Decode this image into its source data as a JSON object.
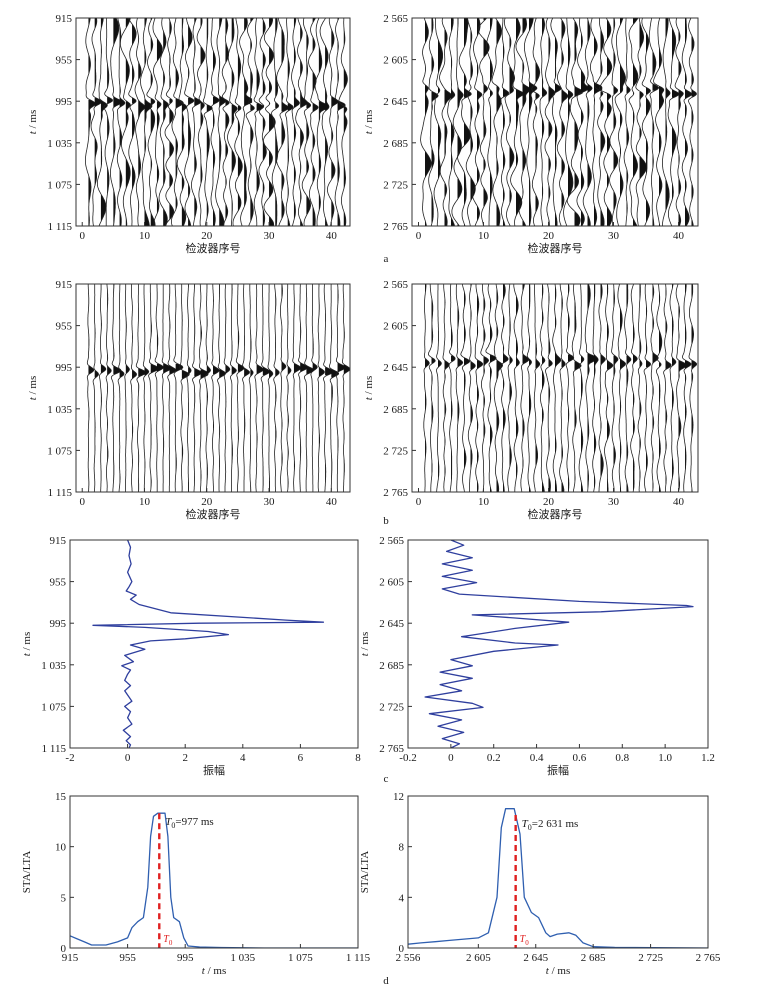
{
  "chart_data": [
    {
      "id": "a-left",
      "panel_label": "",
      "type": "seismic_wiggle",
      "ylabel_italic": "t",
      "ylabel_unit": " / ms",
      "xlabel": "检波器序号",
      "yticks": [
        "915",
        "955",
        "995",
        "1 035",
        "1 075",
        "1 115"
      ],
      "yrange": [
        915,
        1115
      ],
      "xticks": [
        "0",
        "10",
        "20",
        "30",
        "40"
      ],
      "xrange": [
        -1,
        43
      ],
      "traces": 42,
      "event_t": 998,
      "noise": 0.95,
      "event_amp": 1.2,
      "seed": 11
    },
    {
      "id": "a-right",
      "panel_label": "a",
      "type": "seismic_wiggle",
      "ylabel_italic": "t",
      "ylabel_unit": " / ms",
      "xlabel": "检波器序号",
      "yticks": [
        "2 565",
        "2 605",
        "2 645",
        "2 685",
        "2 725",
        "2 765"
      ],
      "yrange": [
        2565,
        2765
      ],
      "xticks": [
        "0",
        "10",
        "20",
        "30",
        "40"
      ],
      "xrange": [
        -1,
        43
      ],
      "traces": 42,
      "event_t": 2636,
      "noise": 1.0,
      "event_amp": 1.1,
      "seed": 23
    },
    {
      "id": "b-left",
      "panel_label": "",
      "type": "seismic_wiggle",
      "ylabel_italic": "t",
      "ylabel_unit": " / ms",
      "xlabel": "检波器序号",
      "yticks": [
        "915",
        "955",
        "995",
        "1 035",
        "1 075",
        "1 115"
      ],
      "yrange": [
        915,
        1115
      ],
      "xticks": [
        "0",
        "10",
        "20",
        "30",
        "40"
      ],
      "xrange": [
        -1,
        43
      ],
      "traces": 42,
      "event_t": 998,
      "noise": 0.18,
      "event_amp": 1.3,
      "seed": 37
    },
    {
      "id": "b-right",
      "panel_label": "b",
      "type": "seismic_wiggle",
      "ylabel_italic": "t",
      "ylabel_unit": " / ms",
      "xlabel": "检波器序号",
      "yticks": [
        "2 565",
        "2 605",
        "2 645",
        "2 685",
        "2 725",
        "2 765"
      ],
      "yrange": [
        2565,
        2765
      ],
      "xticks": [
        "0",
        "10",
        "20",
        "30",
        "40"
      ],
      "xrange": [
        -1,
        43
      ],
      "traces": 42,
      "event_t": 2640,
      "noise": 0.45,
      "event_amp": 1.2,
      "seed": 53
    },
    {
      "id": "c-left",
      "panel_label": "",
      "type": "line",
      "ylabel_italic": "t",
      "ylabel_unit": " / ms",
      "xlabel": "振幅",
      "yticks": [
        "915",
        "955",
        "995",
        "1 035",
        "1 075",
        "1 115"
      ],
      "yrange": [
        915,
        1115
      ],
      "xticks": [
        "-2",
        "0",
        "2",
        "4",
        "6",
        "8"
      ],
      "xrange": [
        -2,
        8
      ],
      "series_color": "#2f3f9e",
      "points": [
        [
          0.0,
          915
        ],
        [
          0.1,
          922
        ],
        [
          0.05,
          930
        ],
        [
          0.12,
          938
        ],
        [
          0.0,
          946
        ],
        [
          0.15,
          955
        ],
        [
          0.05,
          960
        ],
        [
          -0.05,
          964
        ],
        [
          0.3,
          968
        ],
        [
          0.1,
          972
        ],
        [
          0.4,
          977
        ],
        [
          1.5,
          985
        ],
        [
          5.5,
          992
        ],
        [
          6.8,
          994
        ],
        [
          2.5,
          995
        ],
        [
          -1.2,
          997
        ],
        [
          -0.3,
          998
        ],
        [
          0.6,
          999
        ],
        [
          2.8,
          1003
        ],
        [
          3.5,
          1006
        ],
        [
          2.0,
          1010
        ],
        [
          0.8,
          1012
        ],
        [
          0.1,
          1016
        ],
        [
          0.6,
          1020
        ],
        [
          -0.1,
          1026
        ],
        [
          0.2,
          1032
        ],
        [
          -0.2,
          1036
        ],
        [
          0.1,
          1040
        ],
        [
          0.0,
          1044
        ],
        [
          -0.1,
          1050
        ],
        [
          0.1,
          1055
        ],
        [
          -0.1,
          1060
        ],
        [
          0.05,
          1066
        ],
        [
          0.15,
          1070
        ],
        [
          -0.1,
          1075
        ],
        [
          0.1,
          1080
        ],
        [
          0.0,
          1086
        ],
        [
          0.15,
          1092
        ],
        [
          -0.15,
          1098
        ],
        [
          0.1,
          1104
        ],
        [
          -0.05,
          1108
        ],
        [
          0.1,
          1112
        ],
        [
          0.05,
          1115
        ]
      ]
    },
    {
      "id": "c-right",
      "panel_label": "c",
      "type": "line",
      "ylabel_italic": "t",
      "ylabel_unit": " / ms",
      "xlabel": "振幅",
      "yticks": [
        "2 565",
        "2 605",
        "2 645",
        "2 685",
        "2 725",
        "2 765"
      ],
      "yrange": [
        2565,
        2765
      ],
      "xticks": [
        "-0.2",
        "0",
        "0.2",
        "0.4",
        "0.6",
        "0.8",
        "1.0",
        "1.2"
      ],
      "xrange": [
        -0.2,
        1.2
      ],
      "series_color": "#2f3f9e",
      "points": [
        [
          0.0,
          2565
        ],
        [
          0.06,
          2570
        ],
        [
          -0.02,
          2576
        ],
        [
          0.1,
          2582
        ],
        [
          -0.04,
          2588
        ],
        [
          0.1,
          2594
        ],
        [
          -0.04,
          2600
        ],
        [
          0.12,
          2606
        ],
        [
          -0.04,
          2612
        ],
        [
          0.04,
          2617
        ],
        [
          0.6,
          2624
        ],
        [
          1.1,
          2628
        ],
        [
          1.13,
          2629
        ],
        [
          0.7,
          2634
        ],
        [
          0.1,
          2637
        ],
        [
          0.3,
          2640
        ],
        [
          0.55,
          2644
        ],
        [
          0.3,
          2650
        ],
        [
          0.05,
          2658
        ],
        [
          0.3,
          2664
        ],
        [
          0.5,
          2666
        ],
        [
          0.2,
          2672
        ],
        [
          0.0,
          2680
        ],
        [
          0.1,
          2686
        ],
        [
          -0.05,
          2692
        ],
        [
          0.1,
          2698
        ],
        [
          -0.05,
          2704
        ],
        [
          0.05,
          2710
        ],
        [
          -0.12,
          2716
        ],
        [
          0.1,
          2722
        ],
        [
          0.15,
          2726
        ],
        [
          -0.1,
          2732
        ],
        [
          0.05,
          2738
        ],
        [
          -0.06,
          2744
        ],
        [
          0.06,
          2750
        ],
        [
          -0.04,
          2756
        ],
        [
          0.04,
          2761
        ],
        [
          0.0,
          2765
        ]
      ]
    },
    {
      "id": "d-left",
      "panel_label": "",
      "type": "line",
      "ylabel": "STA/LTA",
      "xlabel_italic": "t",
      "xlabel_unit": " / ms",
      "yticks": [
        "0",
        "5",
        "10",
        "15"
      ],
      "yrange": [
        0,
        15
      ],
      "xticks": [
        "915",
        "955",
        "995",
        "1 035",
        "1 075",
        "1 115"
      ],
      "xrange": [
        915,
        1115
      ],
      "series_color": "#2f5fb0",
      "points": [
        [
          915,
          1.2
        ],
        [
          920,
          0.9
        ],
        [
          925,
          0.6
        ],
        [
          930,
          0.3
        ],
        [
          940,
          0.3
        ],
        [
          948,
          0.6
        ],
        [
          955,
          1.0
        ],
        [
          958,
          2.0
        ],
        [
          962,
          2.6
        ],
        [
          966,
          3.0
        ],
        [
          969,
          6.0
        ],
        [
          971,
          11.0
        ],
        [
          973,
          13.0
        ],
        [
          976,
          13.3
        ],
        [
          981,
          13.3
        ],
        [
          983,
          11.0
        ],
        [
          985,
          5.0
        ],
        [
          987,
          3.0
        ],
        [
          991,
          2.6
        ],
        [
          994,
          1.0
        ],
        [
          997,
          0.2
        ],
        [
          1005,
          0.1
        ],
        [
          1020,
          0.05
        ],
        [
          1050,
          0.0
        ],
        [
          1115,
          0.0
        ]
      ],
      "marker": {
        "x": 977,
        "label_italic": "T",
        "label_sub": "0",
        "label_value": "=977 ms",
        "color": "#e02020"
      }
    },
    {
      "id": "d-right",
      "panel_label": "d",
      "type": "line",
      "ylabel": "STA/LTA",
      "xlabel_italic": "t",
      "xlabel_unit": " / ms",
      "yticks": [
        "0",
        "4",
        "8",
        "12"
      ],
      "yrange": [
        0,
        12
      ],
      "xticks": [
        "2 556",
        "2 605",
        "2 645",
        "2 685",
        "2 725",
        "2 765"
      ],
      "xrange": [
        2556,
        2765
      ],
      "series_color": "#2f5fb0",
      "points": [
        [
          2556,
          0.3
        ],
        [
          2565,
          0.4
        ],
        [
          2575,
          0.5
        ],
        [
          2585,
          0.6
        ],
        [
          2595,
          0.7
        ],
        [
          2605,
          0.8
        ],
        [
          2612,
          1.2
        ],
        [
          2618,
          4.0
        ],
        [
          2621,
          9.5
        ],
        [
          2624,
          11.0
        ],
        [
          2630,
          11.0
        ],
        [
          2634,
          9.0
        ],
        [
          2637,
          4.0
        ],
        [
          2642,
          2.8
        ],
        [
          2647,
          2.4
        ],
        [
          2652,
          1.2
        ],
        [
          2655,
          0.9
        ],
        [
          2660,
          1.1
        ],
        [
          2668,
          1.2
        ],
        [
          2673,
          1.0
        ],
        [
          2678,
          0.4
        ],
        [
          2685,
          0.1
        ],
        [
          2700,
          0.05
        ],
        [
          2765,
          0.0
        ]
      ],
      "marker": {
        "x": 2631,
        "label_italic": "T",
        "label_sub": "0",
        "label_value": "=2 631 ms",
        "color": "#e02020"
      }
    }
  ]
}
